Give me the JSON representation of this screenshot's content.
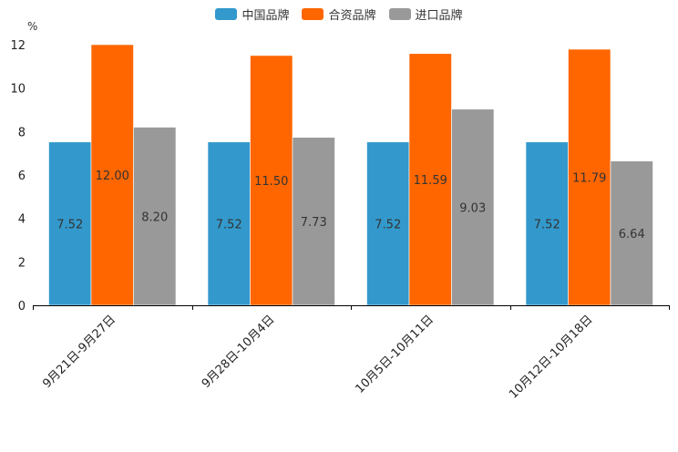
{
  "chart_data": {
    "type": "bar",
    "unit": "%",
    "categories": [
      "9月21日-9月27日",
      "9月28日-10月4日",
      "10月5日-10月11日",
      "10月12日-10月18日"
    ],
    "series": [
      {
        "name": "中国品牌",
        "color": "#3399cc",
        "values": [
          7.52,
          7.52,
          7.52,
          7.52
        ],
        "labels": [
          "7.52",
          "7.52",
          "7.52",
          "7.52"
        ]
      },
      {
        "name": "合资品牌",
        "color": "#ff6600",
        "values": [
          12.0,
          11.5,
          11.59,
          11.79
        ],
        "labels": [
          "12.00",
          "11.50",
          "11.59",
          "11.79"
        ]
      },
      {
        "name": "进口品牌",
        "color": "#999999",
        "values": [
          8.2,
          7.73,
          9.03,
          6.64
        ],
        "labels": [
          "8.20",
          "7.73",
          "9.03",
          "6.64"
        ]
      }
    ],
    "ylim": [
      0,
      12
    ],
    "yticks": [
      "0",
      "2",
      "4",
      "6",
      "8",
      "10",
      "12"
    ],
    "legend_position": "top-center"
  }
}
